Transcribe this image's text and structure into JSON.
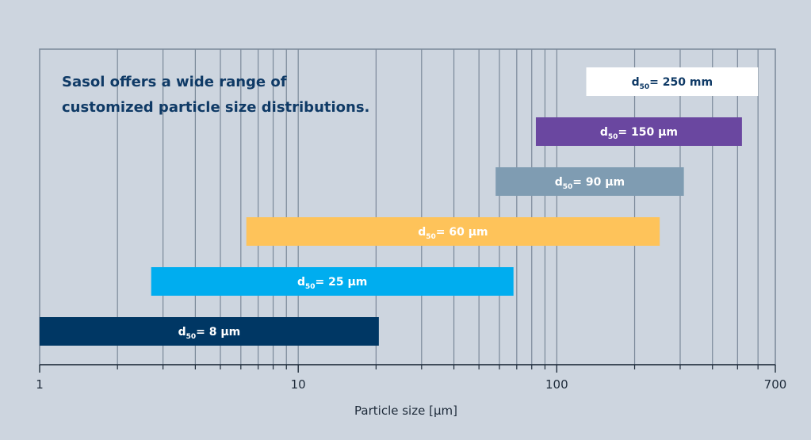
{
  "chart_data": {
    "type": "bar",
    "orientation": "horizontal-range",
    "title_lines": [
      "Sasol offers a wide range of",
      "customized particle size distributions."
    ],
    "xlabel": "Particle size [µm]",
    "xscale": "log",
    "xlim": [
      1,
      700
    ],
    "x_ticks": [
      {
        "value": 1,
        "label": "1"
      },
      {
        "value": 10,
        "label": "10"
      },
      {
        "value": 100,
        "label": "100"
      },
      {
        "value": 700,
        "label": "700"
      }
    ],
    "grid": true,
    "bars": [
      {
        "prefix": "d",
        "sub": "50",
        "text": "= 250 mm",
        "start": 130,
        "end": 600,
        "color": "#ffffff",
        "text_color": "#0f3a66"
      },
      {
        "prefix": "d",
        "sub": "50",
        "text": "= 150 µm",
        "start": 83,
        "end": 520,
        "color": "#6a47a0",
        "text_color": "#ffffff"
      },
      {
        "prefix": "d",
        "sub": "50",
        "text": "= 90 µm",
        "start": 58,
        "end": 310,
        "color": "#7f9cb2",
        "text_color": "#ffffff"
      },
      {
        "prefix": "d",
        "sub": "50",
        "text": "= 60 µm",
        "start": 6.3,
        "end": 250,
        "color": "#fec35a",
        "text_color": "#ffffff"
      },
      {
        "prefix": "d",
        "sub": "50",
        "text": "= 25 µm",
        "start": 2.7,
        "end": 68,
        "color": "#00adef",
        "text_color": "#ffffff"
      },
      {
        "prefix": "d",
        "sub": "50",
        "text": "= 8 µm",
        "start": 1,
        "end": 20.5,
        "color": "#003764",
        "text_color": "#ffffff"
      }
    ]
  }
}
